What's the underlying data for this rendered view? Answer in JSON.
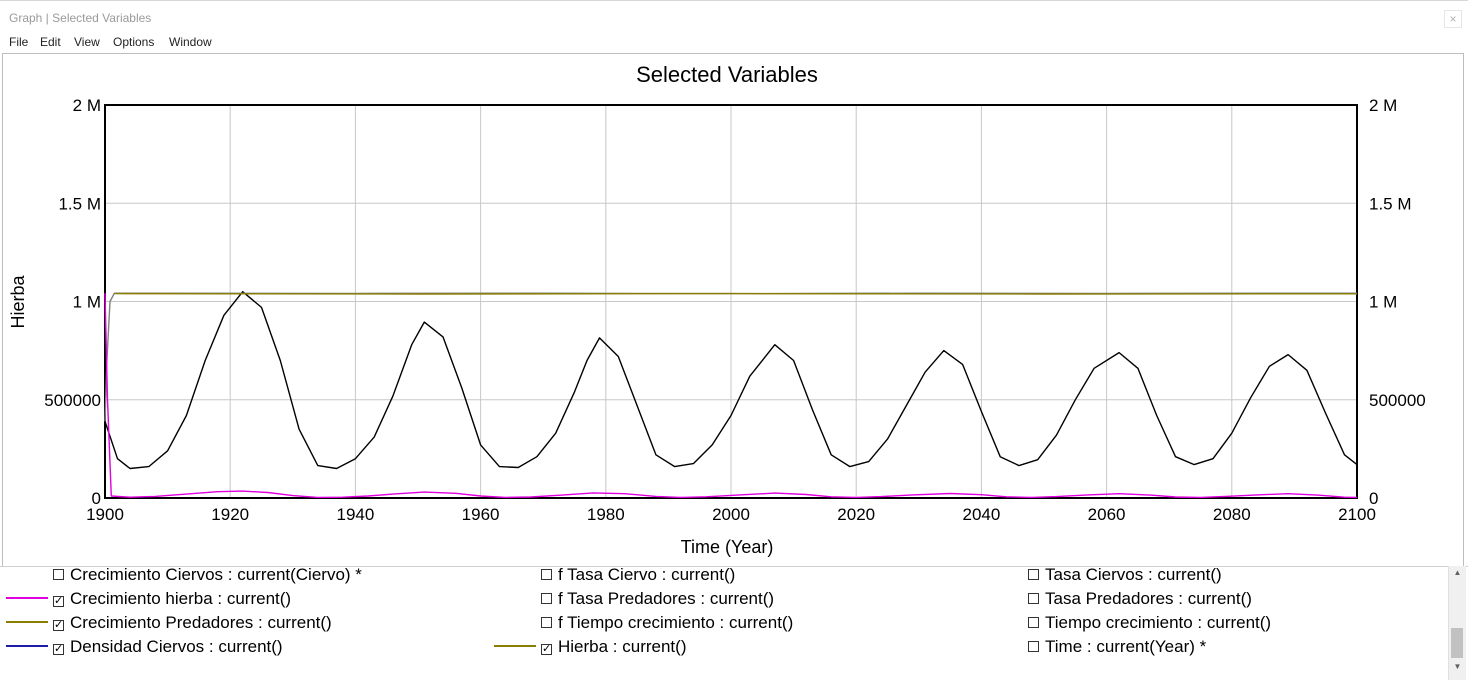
{
  "window": {
    "title": "Graph | Selected Variables",
    "close_label": "×"
  },
  "menu": [
    "File",
    "Edit",
    "View",
    "Options",
    "Window"
  ],
  "colors": {
    "black": "#000000",
    "magenta": "#e000e0",
    "olive": "#8a7d00",
    "navy": "#1c1ca8",
    "gray": "#808080"
  },
  "chart_data": {
    "type": "line",
    "title": "Selected Variables",
    "xlabel": "Time (Year)",
    "ylabel": "Hierba",
    "xlim": [
      1900,
      2100
    ],
    "ylim": [
      0,
      2000000
    ],
    "xticks": [
      "1900",
      "1920",
      "1940",
      "1960",
      "1980",
      "2000",
      "2020",
      "2040",
      "2060",
      "2080",
      "2100"
    ],
    "yticks_left": [
      "0",
      "500000",
      "1 M",
      "1.5 M",
      "2 M"
    ],
    "yticks_right": [
      "0",
      "500000",
      "1 M",
      "1.5 M",
      "2 M"
    ],
    "grid": true,
    "series": [
      {
        "color": "#000000",
        "x": [
          1900,
          1902,
          1904,
          1907,
          1910,
          1913,
          1916,
          1919,
          1922,
          1925,
          1928,
          1931,
          1934,
          1937,
          1940,
          1943,
          1946,
          1949,
          1951,
          1954,
          1957,
          1960,
          1963,
          1966,
          1969,
          1972,
          1975,
          1977,
          1979,
          1982,
          1985,
          1988,
          1991,
          1994,
          1997,
          2000,
          2003,
          2007,
          2010,
          2013,
          2016,
          2019,
          2022,
          2025,
          2028,
          2031,
          2034,
          2037,
          2040,
          2043,
          2046,
          2049,
          2052,
          2055,
          2058,
          2062,
          2065,
          2068,
          2071,
          2074,
          2077,
          2080,
          2083,
          2086,
          2089,
          2092,
          2095,
          2098,
          2100
        ],
        "y": [
          390000,
          200000,
          150000,
          160000,
          240000,
          420000,
          700000,
          930000,
          1050000,
          970000,
          700000,
          350000,
          165000,
          150000,
          200000,
          310000,
          520000,
          780000,
          895000,
          820000,
          560000,
          270000,
          160000,
          155000,
          210000,
          330000,
          540000,
          700000,
          815000,
          720000,
          470000,
          220000,
          160000,
          175000,
          270000,
          420000,
          620000,
          780000,
          700000,
          450000,
          220000,
          160000,
          185000,
          300000,
          470000,
          640000,
          750000,
          680000,
          440000,
          210000,
          165000,
          195000,
          320000,
          500000,
          660000,
          740000,
          660000,
          420000,
          210000,
          170000,
          200000,
          330000,
          510000,
          670000,
          730000,
          650000,
          430000,
          220000,
          170000
        ]
      },
      {
        "color": "#808080",
        "x": [
          1900,
          1900.3,
          1900.8,
          1901.5,
          1910,
          1940,
          1970,
          2000,
          2030,
          2060,
          2090,
          2100
        ],
        "y": [
          390000,
          700000,
          1000000,
          1042000,
          1042000,
          1041000,
          1042000,
          1040000,
          1042000,
          1041000,
          1042000,
          1042000
        ]
      },
      {
        "color": "#8a7d00",
        "x": [
          1901.5,
          1950,
          2000,
          2050,
          2100
        ],
        "y": [
          1040000,
          1038000,
          1040000,
          1038000,
          1039000
        ]
      },
      {
        "color": "#e000e0",
        "x": [
          1900,
          1900.4,
          1901,
          1904,
          1908,
          1913,
          1918,
          1922,
          1926,
          1930,
          1934,
          1938,
          1942,
          1946,
          1951,
          1956,
          1960,
          1964,
          1968,
          1973,
          1978,
          1983,
          1988,
          1992,
          1996,
          2001,
          2007,
          2012,
          2016,
          2020,
          2024,
          2029,
          2035,
          2040,
          2044,
          2048,
          2052,
          2057,
          2062,
          2067,
          2071,
          2075,
          2079,
          2084,
          2089,
          2094,
          2098,
          2100
        ],
        "y": [
          1042000,
          500000,
          10000,
          4000,
          8000,
          20000,
          32000,
          35000,
          28000,
          12000,
          3000,
          4000,
          10000,
          20000,
          30000,
          24000,
          10000,
          3000,
          5000,
          15000,
          26000,
          22000,
          8000,
          3000,
          6000,
          15000,
          25000,
          18000,
          6000,
          3000,
          7000,
          16000,
          23000,
          17000,
          6000,
          3000,
          7000,
          16000,
          22000,
          15000,
          5000,
          3000,
          8000,
          16000,
          22000,
          14000,
          4000,
          3000
        ]
      }
    ]
  },
  "legend": {
    "col1": [
      "Crecimiento Ciervos : current(Ciervo) *",
      "Crecimiento hierba : current()",
      "Crecimiento Predadores : current()",
      "Densidad Ciervos : current()"
    ],
    "col2": [
      "f Tasa Ciervo : current()",
      "f Tasa Predadores : current()",
      "f Tiempo crecimiento : current()",
      "Hierba : current()"
    ],
    "col3": [
      "Tasa Ciervos : current()",
      "Tasa Predadores : current()",
      "Tiempo crecimiento : current()",
      "Time : current(Year) *"
    ],
    "check_mark": "✓",
    "scroll_up": "▲",
    "scroll_down": "▼"
  }
}
